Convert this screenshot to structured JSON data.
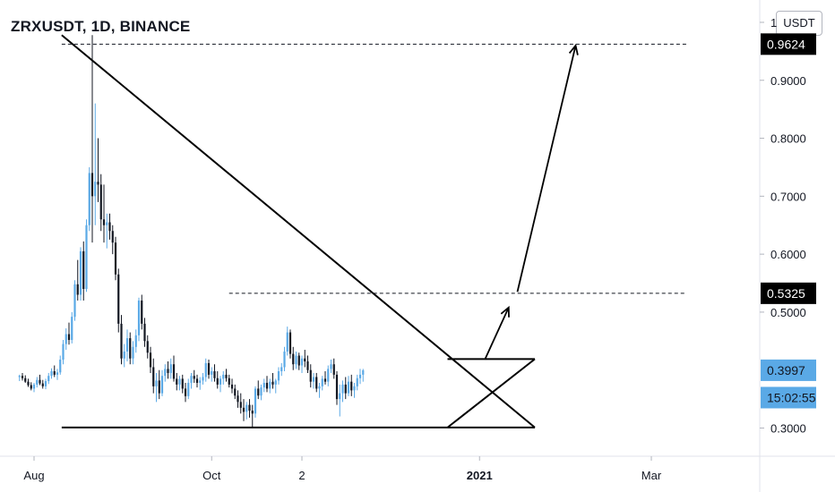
{
  "header": {
    "title": "ZRXUSDT, 1D, BINANCE",
    "currency": "USDT"
  },
  "colors": {
    "up": "#5aa9e6",
    "down": "#131722",
    "label_blue": "#5aa9e6",
    "label_black": "#000000"
  },
  "chart_data": {
    "type": "candlestick",
    "title": "ZRXUSDT, 1D, BINANCE",
    "xlabel": "",
    "ylabel": "USDT",
    "ylim": [
      0.26,
      1.05
    ],
    "x_ticks": [
      {
        "label": "Aug",
        "bold": false,
        "day": 0
      },
      {
        "label": "Oct",
        "bold": false,
        "day": 61
      },
      {
        "label": "2",
        "bold": false,
        "day": 92
      },
      {
        "label": "2021",
        "bold": true,
        "day": 153
      },
      {
        "label": "Mar",
        "bold": false,
        "day": 212
      }
    ],
    "y_ticks": [
      {
        "label": "1",
        "value": 1.0
      },
      {
        "label": "0.9000",
        "value": 0.9
      },
      {
        "label": "0.8000",
        "value": 0.8
      },
      {
        "label": "0.7000",
        "value": 0.7
      },
      {
        "label": "0.6000",
        "value": 0.6
      },
      {
        "label": "0.5000",
        "value": 0.5
      },
      {
        "label": "0.3000",
        "value": 0.3
      }
    ],
    "price_labels": [
      {
        "text": "0.9624",
        "value": 0.9624,
        "style": "black"
      },
      {
        "text": "0.5325",
        "value": 0.5325,
        "style": "black"
      },
      {
        "text": "0.3997",
        "value": 0.3997,
        "style": "blue"
      },
      {
        "text": "15:02:55",
        "value": 0.3525,
        "style": "blue"
      }
    ],
    "candles": [
      [
        0.388,
        0.392,
        0.381,
        0.39
      ],
      [
        0.39,
        0.395,
        0.382,
        0.386
      ],
      [
        0.386,
        0.391,
        0.378,
        0.38
      ],
      [
        0.38,
        0.385,
        0.371,
        0.374
      ],
      [
        0.374,
        0.379,
        0.365,
        0.368
      ],
      [
        0.368,
        0.378,
        0.362,
        0.375
      ],
      [
        0.375,
        0.388,
        0.37,
        0.383
      ],
      [
        0.383,
        0.392,
        0.374,
        0.377
      ],
      [
        0.377,
        0.383,
        0.368,
        0.372
      ],
      [
        0.372,
        0.385,
        0.367,
        0.381
      ],
      [
        0.381,
        0.395,
        0.376,
        0.39
      ],
      [
        0.39,
        0.403,
        0.385,
        0.398
      ],
      [
        0.398,
        0.408,
        0.388,
        0.392
      ],
      [
        0.392,
        0.402,
        0.383,
        0.396
      ],
      [
        0.396,
        0.425,
        0.392,
        0.418
      ],
      [
        0.418,
        0.452,
        0.41,
        0.445
      ],
      [
        0.445,
        0.472,
        0.435,
        0.462
      ],
      [
        0.462,
        0.482,
        0.444,
        0.452
      ],
      [
        0.452,
        0.5,
        0.446,
        0.492
      ],
      [
        0.492,
        0.555,
        0.485,
        0.548
      ],
      [
        0.548,
        0.59,
        0.52,
        0.53
      ],
      [
        0.53,
        0.612,
        0.52,
        0.605
      ],
      [
        0.605,
        0.622,
        0.52,
        0.54
      ],
      [
        0.54,
        0.66,
        0.535,
        0.65
      ],
      [
        0.65,
        0.75,
        0.64,
        0.74
      ],
      [
        0.74,
        0.978,
        0.62,
        0.7
      ],
      [
        0.7,
        0.86,
        0.65,
        0.725
      ],
      [
        0.725,
        0.8,
        0.69,
        0.72
      ],
      [
        0.72,
        0.738,
        0.64,
        0.66
      ],
      [
        0.66,
        0.72,
        0.62,
        0.65
      ],
      [
        0.65,
        0.67,
        0.61,
        0.655
      ],
      [
        0.655,
        0.67,
        0.625,
        0.64
      ],
      [
        0.64,
        0.65,
        0.6,
        0.62
      ],
      [
        0.62,
        0.63,
        0.555,
        0.565
      ],
      [
        0.565,
        0.575,
        0.465,
        0.48
      ],
      [
        0.48,
        0.495,
        0.41,
        0.42
      ],
      [
        0.42,
        0.445,
        0.405,
        0.432
      ],
      [
        0.432,
        0.47,
        0.415,
        0.455
      ],
      [
        0.455,
        0.465,
        0.41,
        0.42
      ],
      [
        0.42,
        0.45,
        0.41,
        0.44
      ],
      [
        0.44,
        0.47,
        0.43,
        0.46
      ],
      [
        0.46,
        0.525,
        0.45,
        0.52
      ],
      [
        0.52,
        0.53,
        0.47,
        0.48
      ],
      [
        0.48,
        0.49,
        0.44,
        0.45
      ],
      [
        0.45,
        0.46,
        0.42,
        0.43
      ],
      [
        0.43,
        0.44,
        0.395,
        0.405
      ],
      [
        0.405,
        0.42,
        0.36,
        0.372
      ],
      [
        0.372,
        0.395,
        0.345,
        0.382
      ],
      [
        0.382,
        0.4,
        0.35,
        0.36
      ],
      [
        0.36,
        0.4,
        0.355,
        0.39
      ],
      [
        0.39,
        0.41,
        0.38,
        0.402
      ],
      [
        0.402,
        0.415,
        0.385,
        0.395
      ],
      [
        0.395,
        0.42,
        0.385,
        0.41
      ],
      [
        0.41,
        0.425,
        0.38,
        0.385
      ],
      [
        0.385,
        0.395,
        0.365,
        0.375
      ],
      [
        0.375,
        0.39,
        0.365,
        0.385
      ],
      [
        0.385,
        0.392,
        0.36,
        0.368
      ],
      [
        0.368,
        0.378,
        0.345,
        0.355
      ],
      [
        0.355,
        0.385,
        0.35,
        0.378
      ],
      [
        0.378,
        0.395,
        0.368,
        0.39
      ],
      [
        0.39,
        0.4,
        0.378,
        0.385
      ],
      [
        0.385,
        0.392,
        0.37,
        0.378
      ],
      [
        0.378,
        0.388,
        0.366,
        0.382
      ],
      [
        0.382,
        0.395,
        0.375,
        0.388
      ],
      [
        0.388,
        0.42,
        0.38,
        0.412
      ],
      [
        0.412,
        0.418,
        0.385,
        0.392
      ],
      [
        0.392,
        0.405,
        0.38,
        0.398
      ],
      [
        0.398,
        0.41,
        0.38,
        0.386
      ],
      [
        0.386,
        0.398,
        0.368,
        0.375
      ],
      [
        0.375,
        0.39,
        0.362,
        0.385
      ],
      [
        0.385,
        0.398,
        0.375,
        0.392
      ],
      [
        0.392,
        0.402,
        0.38,
        0.386
      ],
      [
        0.386,
        0.392,
        0.37,
        0.375
      ],
      [
        0.375,
        0.385,
        0.36,
        0.368
      ],
      [
        0.368,
        0.375,
        0.35,
        0.356
      ],
      [
        0.356,
        0.365,
        0.335,
        0.345
      ],
      [
        0.345,
        0.36,
        0.325,
        0.335
      ],
      [
        0.335,
        0.35,
        0.312,
        0.328
      ],
      [
        0.328,
        0.345,
        0.315,
        0.34
      ],
      [
        0.34,
        0.35,
        0.318,
        0.33
      ],
      [
        0.33,
        0.34,
        0.3,
        0.325
      ],
      [
        0.325,
        0.372,
        0.318,
        0.368
      ],
      [
        0.368,
        0.382,
        0.35,
        0.356
      ],
      [
        0.356,
        0.375,
        0.348,
        0.37
      ],
      [
        0.37,
        0.385,
        0.362,
        0.378
      ],
      [
        0.378,
        0.39,
        0.362,
        0.368
      ],
      [
        0.368,
        0.385,
        0.36,
        0.38
      ],
      [
        0.38,
        0.395,
        0.368,
        0.375
      ],
      [
        0.375,
        0.385,
        0.36,
        0.382
      ],
      [
        0.382,
        0.405,
        0.375,
        0.398
      ],
      [
        0.398,
        0.412,
        0.39,
        0.405
      ],
      [
        0.405,
        0.44,
        0.398,
        0.432
      ],
      [
        0.432,
        0.475,
        0.425,
        0.465
      ],
      [
        0.465,
        0.47,
        0.42,
        0.428
      ],
      [
        0.428,
        0.44,
        0.4,
        0.41
      ],
      [
        0.41,
        0.432,
        0.402,
        0.425
      ],
      [
        0.425,
        0.43,
        0.4,
        0.408
      ],
      [
        0.408,
        0.425,
        0.395,
        0.42
      ],
      [
        0.42,
        0.435,
        0.405,
        0.415
      ],
      [
        0.415,
        0.425,
        0.395,
        0.4
      ],
      [
        0.4,
        0.41,
        0.37,
        0.38
      ],
      [
        0.38,
        0.395,
        0.368,
        0.388
      ],
      [
        0.388,
        0.395,
        0.362,
        0.368
      ],
      [
        0.368,
        0.378,
        0.352,
        0.372
      ],
      [
        0.372,
        0.39,
        0.365,
        0.385
      ],
      [
        0.385,
        0.398,
        0.375,
        0.38
      ],
      [
        0.38,
        0.408,
        0.372,
        0.402
      ],
      [
        0.402,
        0.418,
        0.395,
        0.41
      ],
      [
        0.41,
        0.42,
        0.385,
        0.392
      ],
      [
        0.392,
        0.398,
        0.34,
        0.35
      ],
      [
        0.35,
        0.375,
        0.32,
        0.36
      ],
      [
        0.36,
        0.382,
        0.345,
        0.375
      ],
      [
        0.375,
        0.388,
        0.35,
        0.36
      ],
      [
        0.36,
        0.39,
        0.355,
        0.38
      ],
      [
        0.38,
        0.392,
        0.355,
        0.365
      ],
      [
        0.365,
        0.378,
        0.352,
        0.372
      ],
      [
        0.372,
        0.392,
        0.365,
        0.386
      ],
      [
        0.386,
        0.402,
        0.376,
        0.392
      ],
      [
        0.392,
        0.402,
        0.38,
        0.3997
      ]
    ],
    "candle_start_day": -5,
    "annotations": [
      {
        "kind": "dashed-line",
        "from": [
          9.5,
          0.9624
        ],
        "to": [
          224,
          0.9624
        ]
      },
      {
        "kind": "dashed-line",
        "from": [
          67,
          0.5325
        ],
        "to": [
          224,
          0.5325
        ]
      },
      {
        "kind": "line",
        "from": [
          9.5,
          0.978
        ],
        "to": [
          172,
          0.301
        ]
      },
      {
        "kind": "line",
        "from": [
          9.5,
          0.301
        ],
        "to": [
          172,
          0.301
        ]
      },
      {
        "kind": "line",
        "from": [
          142,
          0.419
        ],
        "to": [
          172,
          0.419
        ]
      },
      {
        "kind": "line",
        "from": [
          142,
          0.301
        ],
        "to": [
          172,
          0.419
        ]
      },
      {
        "kind": "arrow",
        "from": [
          155,
          0.42
        ],
        "to": [
          163,
          0.508
        ]
      },
      {
        "kind": "arrow",
        "from": [
          166,
          0.535
        ],
        "to": [
          186,
          0.96
        ]
      }
    ]
  }
}
